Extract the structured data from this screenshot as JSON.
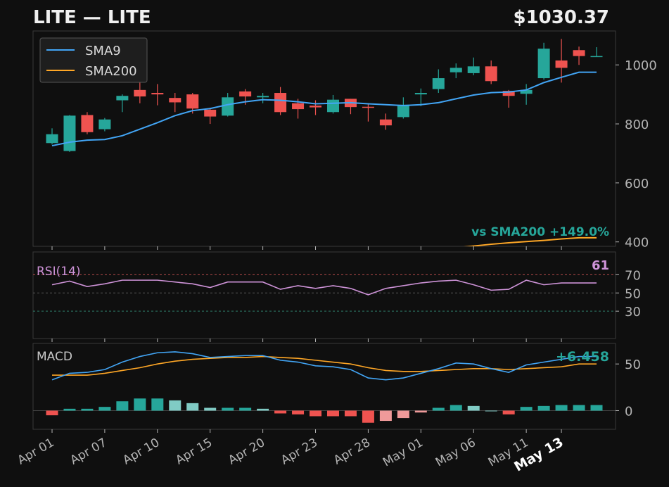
{
  "header": {
    "title": "LITE  —  LITE",
    "price": "$1030.37"
  },
  "colors": {
    "background": "#0f0f0f",
    "panel_border": "#3a3a3a",
    "text": "#f0f0f0",
    "tick_text": "#b4b4b4",
    "up": "#26a69a",
    "down": "#ef5350",
    "sma9": "#42a5f5",
    "sma200": "#ffa726",
    "rsi": "#ce93d8",
    "macd": "#42a5f5",
    "signal": "#ffa726"
  },
  "chart_data": [
    {
      "type": "candlestick",
      "x": [
        "Apr 01",
        "Apr 02",
        "Apr 03",
        "Apr 04",
        "Apr 07",
        "Apr 08",
        "Apr 09",
        "Apr 10",
        "Apr 11",
        "Apr 14",
        "Apr 15",
        "Apr 16",
        "Apr 17",
        "Apr 18",
        "Apr 20",
        "Apr 21",
        "Apr 22",
        "Apr 23",
        "Apr 24",
        "Apr 25",
        "Apr 28",
        "Apr 29",
        "Apr 30",
        "May 01",
        "May 02",
        "May 05",
        "May 06",
        "May 07",
        "May 08",
        "May 11",
        "May 12",
        "May 13"
      ],
      "open": [
        735,
        708,
        830,
        782,
        880,
        915,
        905,
        888,
        900,
        848,
        828,
        910,
        890,
        905,
        870,
        862,
        840,
        885,
        858,
        815,
        823,
        900,
        918,
        975,
        972,
        995,
        912,
        902,
        955,
        1015,
        1050,
        1030
      ],
      "close": [
        765,
        828,
        772,
        815,
        895,
        893,
        900,
        873,
        852,
        825,
        890,
        893,
        895,
        840,
        850,
        856,
        882,
        857,
        856,
        795,
        865,
        905,
        955,
        990,
        995,
        945,
        895,
        915,
        1055,
        990,
        1030,
        1030
      ],
      "high": [
        785,
        830,
        840,
        820,
        900,
        950,
        935,
        905,
        905,
        855,
        905,
        918,
        905,
        925,
        885,
        880,
        898,
        885,
        868,
        835,
        890,
        920,
        985,
        1005,
        1025,
        1015,
        915,
        935,
        1075,
        1088,
        1062,
        1060
      ],
      "low": [
        730,
        705,
        765,
        775,
        840,
        870,
        863,
        840,
        835,
        800,
        825,
        865,
        870,
        830,
        818,
        830,
        835,
        833,
        808,
        780,
        818,
        860,
        905,
        955,
        965,
        935,
        855,
        865,
        950,
        940,
        1000,
        1030
      ],
      "series": [
        {
          "name": "SMA9",
          "values": [
            726,
            738,
            745,
            747,
            760,
            782,
            804,
            828,
            845,
            852,
            865,
            875,
            882,
            880,
            875,
            868,
            870,
            872,
            868,
            865,
            862,
            865,
            872,
            885,
            898,
            906,
            908,
            915,
            940,
            958,
            975,
            975
          ]
        },
        {
          "name": "SMA200",
          "values": [
            null,
            null,
            null,
            null,
            null,
            null,
            null,
            null,
            null,
            null,
            null,
            null,
            null,
            null,
            null,
            null,
            null,
            null,
            null,
            null,
            null,
            null,
            375,
            380,
            386,
            392,
            397,
            401,
            405,
            410,
            414,
            414
          ]
        }
      ],
      "yticks": [
        400,
        600,
        800,
        1000
      ],
      "ylim": [
        385,
        1115
      ],
      "legend": "top-left",
      "annotation": "vs SMA200  +149.0%"
    },
    {
      "type": "line",
      "title": "RSI(14)",
      "value_label": "61",
      "series": [
        {
          "name": "RSI",
          "values": [
            59,
            63,
            57,
            60,
            64,
            64,
            64,
            62,
            60,
            56,
            62,
            62,
            62,
            54,
            58,
            55,
            58,
            55,
            48,
            55,
            58,
            61,
            63,
            64,
            59,
            53,
            54,
            64,
            59,
            61,
            61,
            61
          ]
        }
      ],
      "levels": [
        70,
        50,
        30
      ],
      "yticks": [
        30,
        50,
        70
      ],
      "ylim": [
        0,
        95
      ]
    },
    {
      "type": "bar+line",
      "title": "MACD",
      "value_label": "+6.458",
      "series": [
        {
          "name": "MACD",
          "values": [
            33,
            40,
            41,
            44,
            52,
            58,
            62,
            63,
            61,
            57,
            58,
            59,
            59,
            54,
            52,
            48,
            47,
            44,
            35,
            33,
            35,
            40,
            45,
            51,
            50,
            45,
            41,
            49,
            52,
            55,
            58,
            58
          ]
        },
        {
          "name": "Signal",
          "values": [
            38,
            38,
            38,
            40,
            43,
            46,
            50,
            53,
            55,
            56,
            57,
            57,
            58,
            57,
            56,
            54,
            52,
            50,
            46,
            43,
            42,
            42,
            43,
            44,
            45,
            45,
            44,
            45,
            46,
            47,
            50,
            50
          ]
        }
      ],
      "histogram": [
        -5,
        2,
        2,
        4,
        10,
        13,
        13,
        11,
        8,
        3,
        3,
        3,
        2,
        -3,
        -4,
        -6,
        -6,
        -6,
        -13,
        -11,
        -8,
        -2,
        3,
        6,
        5,
        0,
        -4,
        4,
        5,
        6,
        6,
        6
      ],
      "yticks": [
        0,
        50
      ],
      "ylim": [
        -20,
        72
      ]
    }
  ],
  "xaxis": {
    "tick_labels": [
      "Apr 01",
      "Apr 07",
      "Apr 10",
      "Apr 15",
      "Apr 20",
      "Apr 23",
      "Apr 28",
      "May 01",
      "May 06",
      "May 11",
      "May 13"
    ],
    "tick_index": [
      0,
      3,
      6,
      9,
      12,
      15,
      18,
      21,
      24,
      27,
      29
    ],
    "highlight_label": "May 13"
  }
}
